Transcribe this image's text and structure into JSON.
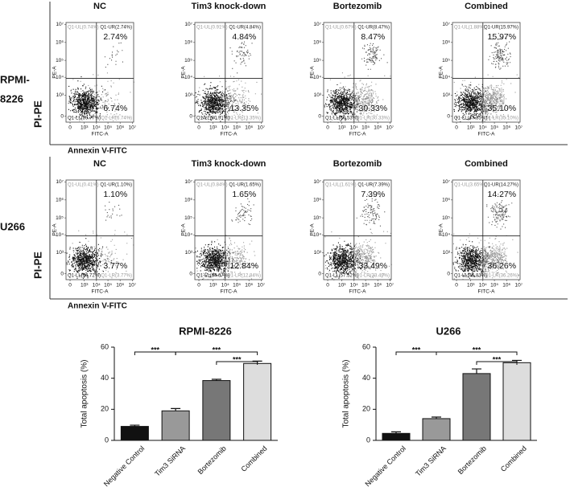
{
  "flow": {
    "x_axis_title": "FITC-A",
    "y_axis_title": "PE-A",
    "x_marker": "Annexin V-FITC",
    "y_marker": "PI-PE",
    "xticks": [
      "0",
      "10³",
      "10⁴",
      "10⁵",
      "10⁶",
      "10⁷"
    ],
    "yticks": [
      "0",
      "10³",
      "10⁴",
      "10⁵",
      "10⁶",
      "10⁷"
    ],
    "rows": [
      {
        "name": [
          "RPMI-",
          "8226"
        ],
        "panels": [
          {
            "title": "NC",
            "ul": "Q1-UL(0.74%)",
            "ur": "Q1-UR(2.74%)",
            "ll": "Q1-LL(89.77%)",
            "lr": "Q1-LR(6.74%)",
            "ur_pct": "2.74%",
            "lr_pct": "6.74%"
          },
          {
            "title": "Tim3 knock-down",
            "ul": "Q1-UL(0.91%)",
            "ur": "Q1-UR(4.84%)",
            "ll": "Q1-LL(80.91%)",
            "lr": "Q1-LR(13.35%)",
            "ur_pct": "4.84%",
            "lr_pct": "13.35%"
          },
          {
            "title": "Bortezomib",
            "ul": "Q1-UL(0.67%)",
            "ur": "Q1-UR(8.47%)",
            "ll": "Q1-LL(60.53%)",
            "lr": "Q1-LR(30.33%)",
            "ur_pct": "8.47%",
            "lr_pct": "30.33%"
          },
          {
            "title": "Combined",
            "ul": "Q1-UL(1.88%)",
            "ur": "Q1-UR(15.97%)",
            "ll": "Q1-LL(47.85%)",
            "lr": "Q1-LR(35.10%)",
            "ur_pct": "15.97%",
            "lr_pct": "35.10%"
          }
        ]
      },
      {
        "name": [
          "U266"
        ],
        "panels": [
          {
            "title": "NC",
            "ul": "Q1-UL(0.41%)",
            "ur": "Q1-UR(1.10%)",
            "ll": "Q1-LL(94.72%)",
            "lr": "Q1-LR(3.77%)",
            "ur_pct": "1.10%",
            "lr_pct": "3.77%"
          },
          {
            "title": "Tim3 knock-down",
            "ul": "Q1-UL(0.84%)",
            "ur": "Q1-UR(1.65%)",
            "ll": "Q1-LL(84.67%)",
            "lr": "Q1-LR(12.84%)",
            "ur_pct": "1.65%",
            "lr_pct": "12.84%"
          },
          {
            "title": "Bortezomib",
            "ul": "Q1-UL(1.61%)",
            "ur": "Q1-UR(7.39%)",
            "ll": "Q1-LL(57.52%)",
            "lr": "Q1-LR(33.49%)",
            "ur_pct": "7.39%",
            "lr_pct": "33.49%"
          },
          {
            "title": "Combined",
            "ul": "Q1-UL(3.65%)",
            "ur": "Q1-UR(14.27%)",
            "ll": "Q1-LL(45.81%)",
            "lr": "Q1-LR(36.26%)",
            "ur_pct": "14.27%",
            "lr_pct": "36.26%"
          }
        ]
      }
    ]
  },
  "chart_data": [
    {
      "type": "bar",
      "title": "RPMI-8226",
      "y_label": "Total apoptosis (%)",
      "categories": [
        "Negative Control",
        "Tim3 SiRNA",
        "Bortezomib",
        "Combined"
      ],
      "values": [
        9,
        19,
        38.5,
        49.5
      ],
      "errors": [
        0.8,
        1.5,
        0.8,
        1.5
      ],
      "colors": [
        "#111111",
        "#999999",
        "#777777",
        "#dddddd"
      ],
      "ylim": [
        0,
        60
      ],
      "yticks": [
        0,
        20,
        40,
        60
      ],
      "significance": [
        {
          "from": 0,
          "to": 1,
          "label": "***"
        },
        {
          "from": 1,
          "to": 3,
          "label": "***"
        },
        {
          "from": 2,
          "to": 3,
          "label": "***"
        }
      ]
    },
    {
      "type": "bar",
      "title": "U266",
      "y_label": "Total apoptosis (%)",
      "categories": [
        "Negative Control",
        "Tim3 SiRNA",
        "Bortezomib",
        "Combined"
      ],
      "values": [
        4.5,
        14,
        43,
        50
      ],
      "errors": [
        1,
        1,
        3,
        1.5
      ],
      "colors": [
        "#111111",
        "#999999",
        "#777777",
        "#dddddd"
      ],
      "ylim": [
        0,
        60
      ],
      "yticks": [
        0,
        20,
        40,
        60
      ],
      "significance": [
        {
          "from": 0,
          "to": 1,
          "label": "***"
        },
        {
          "from": 1,
          "to": 3,
          "label": "***"
        },
        {
          "from": 2,
          "to": 3,
          "label": "***"
        }
      ]
    }
  ]
}
